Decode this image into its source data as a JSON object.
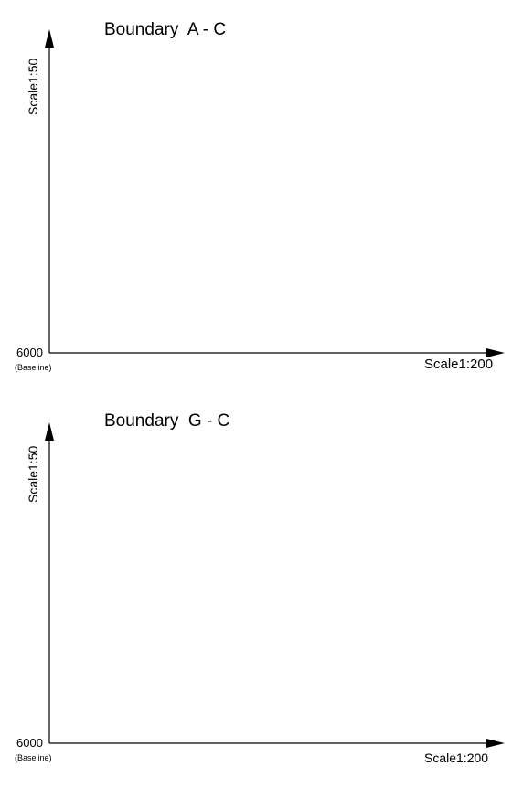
{
  "panels": [
    {
      "title": "Boundary  A - C",
      "y_axis_label": "Scale1:50",
      "x_axis_label": "Scale1:200",
      "origin_value": "6000",
      "origin_note": "(Baseline)"
    },
    {
      "title": "Boundary  G - C",
      "y_axis_label": "Scale1:50",
      "x_axis_label": "Scale1:200",
      "origin_value": "6000",
      "origin_note": "(Baseline)"
    }
  ]
}
